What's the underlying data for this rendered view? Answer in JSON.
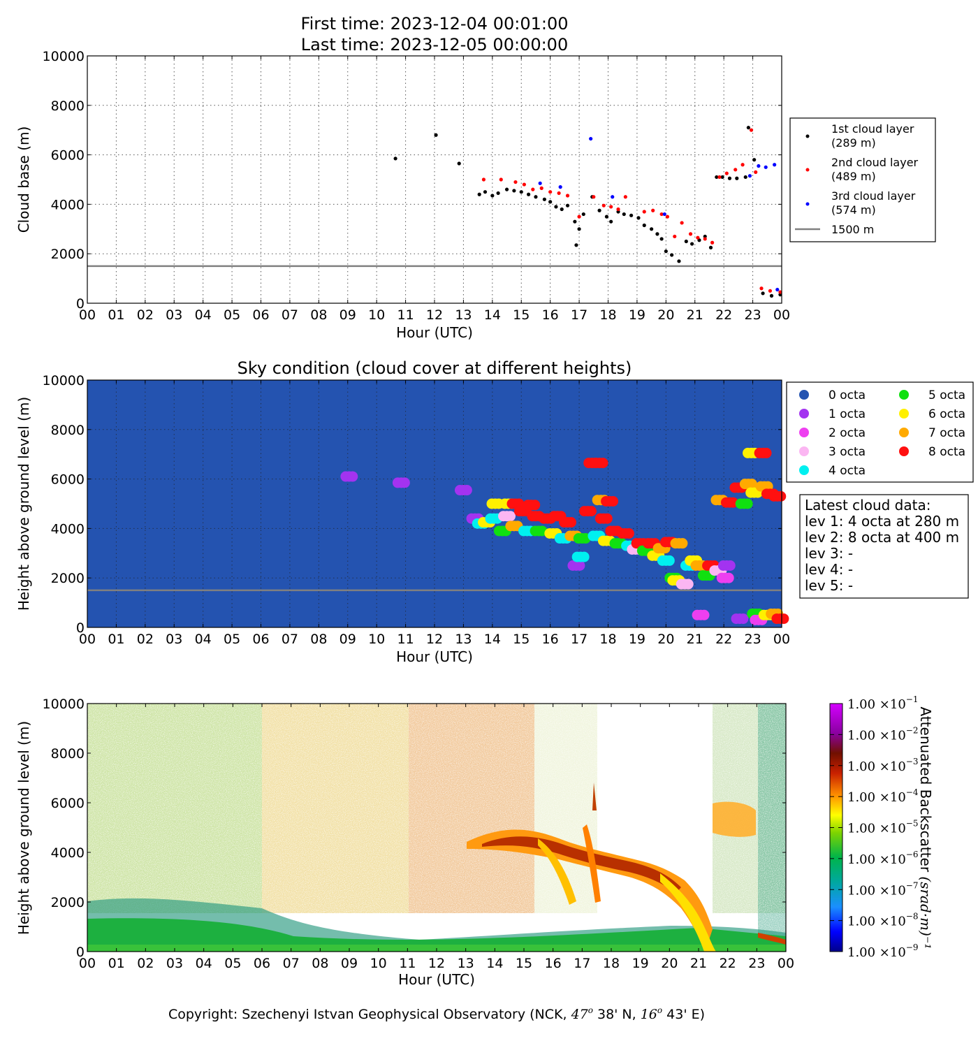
{
  "header": {
    "first_time": "First time: 2023-12-04 00:01:00",
    "last_time": "Last time: 2023-12-05 00:00:00"
  },
  "colors": {
    "first_layer": "#000000",
    "second_layer": "#ff0000",
    "third_layer": "#0000ff",
    "reference_line": "#808080",
    "sky_background": "#2453b0"
  },
  "chart_data": [
    {
      "type": "scatter",
      "ylabel": "Cloud base (m)",
      "xlabel": "Hour (UTC)",
      "ylim": [
        0,
        10000
      ],
      "xlim": [
        0,
        24
      ],
      "grid": true,
      "legend_position": "right",
      "x_tick_labels": [
        "00",
        "01",
        "02",
        "03",
        "04",
        "05",
        "06",
        "07",
        "08",
        "09",
        "10",
        "11",
        "12",
        "13",
        "14",
        "15",
        "16",
        "17",
        "18",
        "19",
        "20",
        "21",
        "22",
        "23",
        "00"
      ],
      "y_tick_labels": [
        "0",
        "2000",
        "4000",
        "6000",
        "8000",
        "10000"
      ],
      "reference_line": {
        "value": 1500,
        "label": "1500 m"
      },
      "series": [
        {
          "name": "1st cloud layer (289 m)",
          "legend_lines": [
            "1st cloud layer",
            "(289 m)"
          ],
          "color": "#000000",
          "x": [
            10.65,
            12.05,
            12.85,
            13.55,
            13.75,
            14.0,
            14.2,
            14.5,
            14.75,
            15.0,
            15.25,
            15.5,
            15.8,
            16.0,
            16.2,
            16.4,
            16.6,
            16.85,
            16.9,
            17.0,
            17.15,
            17.45,
            17.7,
            17.95,
            18.1,
            18.35,
            18.55,
            18.8,
            19.05,
            19.25,
            19.5,
            19.7,
            19.85,
            20.0,
            20.2,
            20.45,
            20.7,
            20.9,
            21.15,
            21.35,
            21.55,
            21.75,
            21.95,
            22.2,
            22.45,
            22.75,
            22.85,
            23.05,
            23.35,
            23.65,
            23.95
          ],
          "y": [
            5850,
            6800,
            5650,
            4400,
            4500,
            4350,
            4450,
            4600,
            4550,
            4500,
            4400,
            4300,
            4200,
            4100,
            3900,
            3800,
            3950,
            3300,
            2350,
            3000,
            3600,
            4300,
            3750,
            3500,
            3300,
            3700,
            3600,
            3550,
            3450,
            3150,
            3000,
            2800,
            2600,
            2100,
            1950,
            1700,
            2500,
            2400,
            2550,
            2700,
            2250,
            5100,
            5100,
            5050,
            5050,
            5100,
            7100,
            5800,
            400,
            300,
            350
          ]
        },
        {
          "name": "2nd cloud layer (489 m)",
          "legend_lines": [
            "2nd cloud layer",
            "(489 m)"
          ],
          "color": "#ff0000",
          "x": [
            13.7,
            14.3,
            14.8,
            15.1,
            15.4,
            15.7,
            16.0,
            16.3,
            16.6,
            17.0,
            17.5,
            17.85,
            18.1,
            18.35,
            18.6,
            19.25,
            19.55,
            19.85,
            20.05,
            20.3,
            20.55,
            20.85,
            21.1,
            21.35,
            21.6,
            21.85,
            22.1,
            22.4,
            22.65,
            22.95,
            23.1,
            23.3,
            23.6,
            23.95
          ],
          "y": [
            5000,
            5000,
            4900,
            4800,
            4600,
            4650,
            4500,
            4450,
            4350,
            3500,
            4300,
            3950,
            3900,
            3800,
            4300,
            3700,
            3750,
            3600,
            3500,
            2700,
            3250,
            2800,
            2650,
            2600,
            2450,
            5100,
            5250,
            5400,
            5600,
            7000,
            5300,
            600,
            500,
            450
          ]
        },
        {
          "name": "3rd cloud layer (574 m)",
          "legend_lines": [
            "3rd cloud layer",
            "(574 m)"
          ],
          "color": "#0000ff",
          "x": [
            15.65,
            16.35,
            17.4,
            18.15,
            19.95,
            22.9,
            23.2,
            23.45,
            23.75,
            23.85
          ],
          "y": [
            4850,
            4700,
            6650,
            4300,
            3600,
            5150,
            5550,
            5500,
            5600,
            550
          ]
        }
      ]
    },
    {
      "type": "scatter",
      "title": "Sky condition (cloud cover at different heights)",
      "ylabel": "Height above ground level (m)",
      "xlabel": "Hour (UTC)",
      "ylim": [
        0,
        10000
      ],
      "xlim": [
        0,
        24
      ],
      "grid": true,
      "legend_position": "right",
      "x_tick_labels": [
        "00",
        "01",
        "02",
        "03",
        "04",
        "05",
        "06",
        "07",
        "08",
        "09",
        "10",
        "11",
        "12",
        "13",
        "14",
        "15",
        "16",
        "17",
        "18",
        "19",
        "20",
        "21",
        "22",
        "23",
        "00"
      ],
      "y_tick_labels": [
        "0",
        "2000",
        "4000",
        "6000",
        "8000",
        "10000"
      ],
      "reference_line": {
        "value": 1500
      },
      "legend": [
        {
          "label": "0 octa",
          "color": "#2453b0"
        },
        {
          "label": "1 octa",
          "color": "#a333f0"
        },
        {
          "label": "2 octa",
          "color": "#ee3ff0"
        },
        {
          "label": "3 octa",
          "color": "#fbb6f2"
        },
        {
          "label": "4 octa",
          "color": "#00f0f0"
        },
        {
          "label": "5 octa",
          "color": "#10e010"
        },
        {
          "label": "6 octa",
          "color": "#fff000"
        },
        {
          "label": "7 octa",
          "color": "#ffaa00"
        },
        {
          "label": "8 octa",
          "color": "#ff1010"
        }
      ],
      "points": [
        {
          "x": 9.05,
          "y": 6100,
          "octa": 1
        },
        {
          "x": 10.85,
          "y": 5850,
          "octa": 1
        },
        {
          "x": 13.0,
          "y": 5550,
          "octa": 1
        },
        {
          "x": 13.4,
          "y": 4400,
          "octa": 1
        },
        {
          "x": 13.6,
          "y": 4200,
          "octa": 4
        },
        {
          "x": 13.8,
          "y": 4250,
          "octa": 6
        },
        {
          "x": 14.05,
          "y": 4400,
          "octa": 4
        },
        {
          "x": 14.1,
          "y": 5000,
          "octa": 6
        },
        {
          "x": 14.35,
          "y": 3900,
          "octa": 5
        },
        {
          "x": 14.5,
          "y": 4500,
          "octa": 3
        },
        {
          "x": 14.55,
          "y": 5000,
          "octa": 6
        },
        {
          "x": 14.75,
          "y": 4100,
          "octa": 7
        },
        {
          "x": 14.8,
          "y": 5000,
          "octa": 8
        },
        {
          "x": 15.05,
          "y": 4700,
          "octa": 8
        },
        {
          "x": 15.2,
          "y": 3900,
          "octa": 4
        },
        {
          "x": 15.35,
          "y": 4950,
          "octa": 8
        },
        {
          "x": 15.5,
          "y": 4500,
          "octa": 8
        },
        {
          "x": 15.6,
          "y": 3900,
          "octa": 5
        },
        {
          "x": 15.9,
          "y": 4400,
          "octa": 8
        },
        {
          "x": 16.1,
          "y": 3800,
          "octa": 6
        },
        {
          "x": 16.25,
          "y": 4500,
          "octa": 8
        },
        {
          "x": 16.45,
          "y": 3600,
          "octa": 4
        },
        {
          "x": 16.6,
          "y": 4250,
          "octa": 8
        },
        {
          "x": 16.8,
          "y": 3700,
          "octa": 7
        },
        {
          "x": 16.9,
          "y": 2500,
          "octa": 1
        },
        {
          "x": 17.05,
          "y": 2850,
          "octa": 4
        },
        {
          "x": 17.1,
          "y": 3600,
          "octa": 5
        },
        {
          "x": 17.3,
          "y": 4700,
          "octa": 8
        },
        {
          "x": 17.45,
          "y": 6650,
          "octa": 8
        },
        {
          "x": 17.6,
          "y": 3700,
          "octa": 4
        },
        {
          "x": 17.7,
          "y": 6650,
          "octa": 8
        },
        {
          "x": 17.75,
          "y": 5150,
          "octa": 7
        },
        {
          "x": 17.85,
          "y": 4400,
          "octa": 8
        },
        {
          "x": 17.95,
          "y": 3500,
          "octa": 6
        },
        {
          "x": 18.05,
          "y": 5100,
          "octa": 8
        },
        {
          "x": 18.2,
          "y": 3900,
          "octa": 8
        },
        {
          "x": 18.35,
          "y": 3400,
          "octa": 5
        },
        {
          "x": 18.6,
          "y": 3800,
          "octa": 8
        },
        {
          "x": 18.75,
          "y": 3300,
          "octa": 4
        },
        {
          "x": 18.95,
          "y": 3150,
          "octa": 3
        },
        {
          "x": 19.1,
          "y": 3400,
          "octa": 8
        },
        {
          "x": 19.3,
          "y": 3100,
          "octa": 5
        },
        {
          "x": 19.5,
          "y": 3400,
          "octa": 8
        },
        {
          "x": 19.65,
          "y": 2900,
          "octa": 6
        },
        {
          "x": 19.85,
          "y": 3200,
          "octa": 7
        },
        {
          "x": 20.0,
          "y": 2700,
          "octa": 4
        },
        {
          "x": 20.1,
          "y": 3450,
          "octa": 8
        },
        {
          "x": 20.25,
          "y": 2000,
          "octa": 5
        },
        {
          "x": 20.35,
          "y": 1900,
          "octa": 6
        },
        {
          "x": 20.45,
          "y": 3400,
          "octa": 7
        },
        {
          "x": 20.65,
          "y": 1750,
          "octa": 3
        },
        {
          "x": 20.8,
          "y": 2500,
          "octa": 4
        },
        {
          "x": 20.95,
          "y": 2700,
          "octa": 6
        },
        {
          "x": 21.15,
          "y": 2500,
          "octa": 7
        },
        {
          "x": 21.2,
          "y": 500,
          "octa": 2
        },
        {
          "x": 21.4,
          "y": 2100,
          "octa": 5
        },
        {
          "x": 21.55,
          "y": 2500,
          "octa": 8
        },
        {
          "x": 21.8,
          "y": 2300,
          "octa": 3
        },
        {
          "x": 21.85,
          "y": 5150,
          "octa": 7
        },
        {
          "x": 22.05,
          "y": 2000,
          "octa": 2
        },
        {
          "x": 22.1,
          "y": 2500,
          "octa": 1
        },
        {
          "x": 22.2,
          "y": 5050,
          "octa": 8
        },
        {
          "x": 22.5,
          "y": 5650,
          "octa": 8
        },
        {
          "x": 22.55,
          "y": 350,
          "octa": 1
        },
        {
          "x": 22.7,
          "y": 5000,
          "octa": 5
        },
        {
          "x": 22.85,
          "y": 5800,
          "octa": 7
        },
        {
          "x": 22.95,
          "y": 7050,
          "octa": 6
        },
        {
          "x": 23.05,
          "y": 5450,
          "octa": 6
        },
        {
          "x": 23.1,
          "y": 550,
          "octa": 5
        },
        {
          "x": 23.2,
          "y": 300,
          "octa": 2
        },
        {
          "x": 23.35,
          "y": 7050,
          "octa": 8
        },
        {
          "x": 23.4,
          "y": 5700,
          "octa": 7
        },
        {
          "x": 23.5,
          "y": 500,
          "octa": 6
        },
        {
          "x": 23.6,
          "y": 5400,
          "octa": 8
        },
        {
          "x": 23.75,
          "y": 550,
          "octa": 7
        },
        {
          "x": 23.85,
          "y": 5300,
          "octa": 8
        },
        {
          "x": 23.95,
          "y": 350,
          "octa": 8
        }
      ]
    },
    {
      "type": "heatmap",
      "ylabel": "Height above ground level (m)",
      "xlabel": "Hour (UTC)",
      "ylim": [
        0,
        10000
      ],
      "xlim": [
        0,
        24
      ],
      "x_tick_labels": [
        "00",
        "01",
        "02",
        "03",
        "04",
        "05",
        "06",
        "07",
        "08",
        "09",
        "10",
        "11",
        "12",
        "13",
        "14",
        "15",
        "16",
        "17",
        "18",
        "19",
        "20",
        "21",
        "22",
        "23",
        "00"
      ],
      "y_tick_labels": [
        "0",
        "2000",
        "4000",
        "6000",
        "8000",
        "10000"
      ],
      "colorbar": {
        "label": "Attenuated Backscatter ",
        "label_math": "(srad·m)⁻¹",
        "scale": "log",
        "range": [
          1e-09,
          0.1
        ],
        "tick_mantissa": "1.00 ×10",
        "tick_exponents": [
          "−1",
          "−2",
          "−3",
          "−4",
          "−5",
          "−6",
          "−7",
          "−8",
          "−9"
        ]
      }
    }
  ],
  "footer": {
    "copyright": "Copyright: Szechenyi Istvan Geophysical Observatory (NCK, ",
    "lat": "47",
    "lat_min": "38' N, ",
    "lon": "16",
    "lon_min": "43' E)",
    "degree": "o"
  },
  "latest_box": {
    "title": "Latest cloud data:",
    "lines": [
      "lev 1: 4 octa at 280 m",
      "lev 2: 8 octa at 400 m",
      "lev 3: -",
      "lev 4: -",
      "lev 5: -"
    ]
  }
}
